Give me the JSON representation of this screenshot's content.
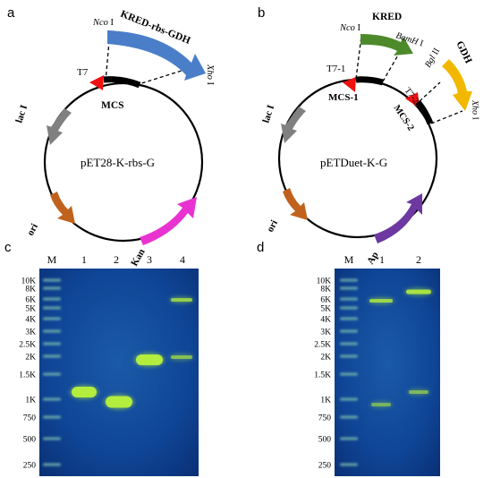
{
  "panels": {
    "a": {
      "letter": "a",
      "plasmid_name": "pET28-K-rbs-G",
      "promoter": "T7",
      "mcs": "MCS",
      "site1": "Nco",
      "site1_num": "I",
      "site2": "Xho",
      "site2_num": "I",
      "insert": "KRED-rbs-GDH",
      "genes": [
        "lac I",
        "ori",
        "Kan"
      ]
    },
    "b": {
      "letter": "b",
      "plasmid_name": "pETDuet-K-G",
      "promoter1": "T7-1",
      "promoter2": "T7-2",
      "mcs1": "MCS-1",
      "mcs2": "MCS-2",
      "insert1": "KRED",
      "insert2": "GDH",
      "site_nco": "Nco",
      "site_nco_num": "I",
      "site_bam": "BamH",
      "site_bam_num": "I",
      "site_bgl": "Bgl",
      "site_bgl_num": "II",
      "site_xho": "Xho",
      "site_xho_num": "I",
      "genes": [
        "lac I",
        "ori",
        "Ap"
      ]
    },
    "c": {
      "letter": "c",
      "lane_labels": [
        "M",
        "1",
        "2",
        "3",
        "4"
      ],
      "ladder": [
        "10K",
        "8K",
        "6K",
        "5K",
        "4K",
        "3K",
        "2.5K",
        "2K",
        "1.5K",
        "1K",
        "750",
        "500",
        "250"
      ]
    },
    "d": {
      "letter": "d",
      "lane_labels": [
        "M",
        "1",
        "2"
      ],
      "ladder": [
        "10K",
        "8K",
        "6K",
        "5K",
        "4K",
        "3K",
        "2.5K",
        "2K",
        "1.5K",
        "1K",
        "750",
        "500",
        "250"
      ]
    }
  },
  "colors": {
    "promoter": "#ee1111",
    "kred_gdh": "#4a7ec8",
    "kred": "#4e8a2c",
    "gdh": "#f2b800",
    "lac": "#808080",
    "ori": "#c0621e",
    "kan": "#e833d0",
    "ap": "#6d39a0",
    "gel_bg": "#0c3d8c",
    "band": "#b7f13b"
  }
}
